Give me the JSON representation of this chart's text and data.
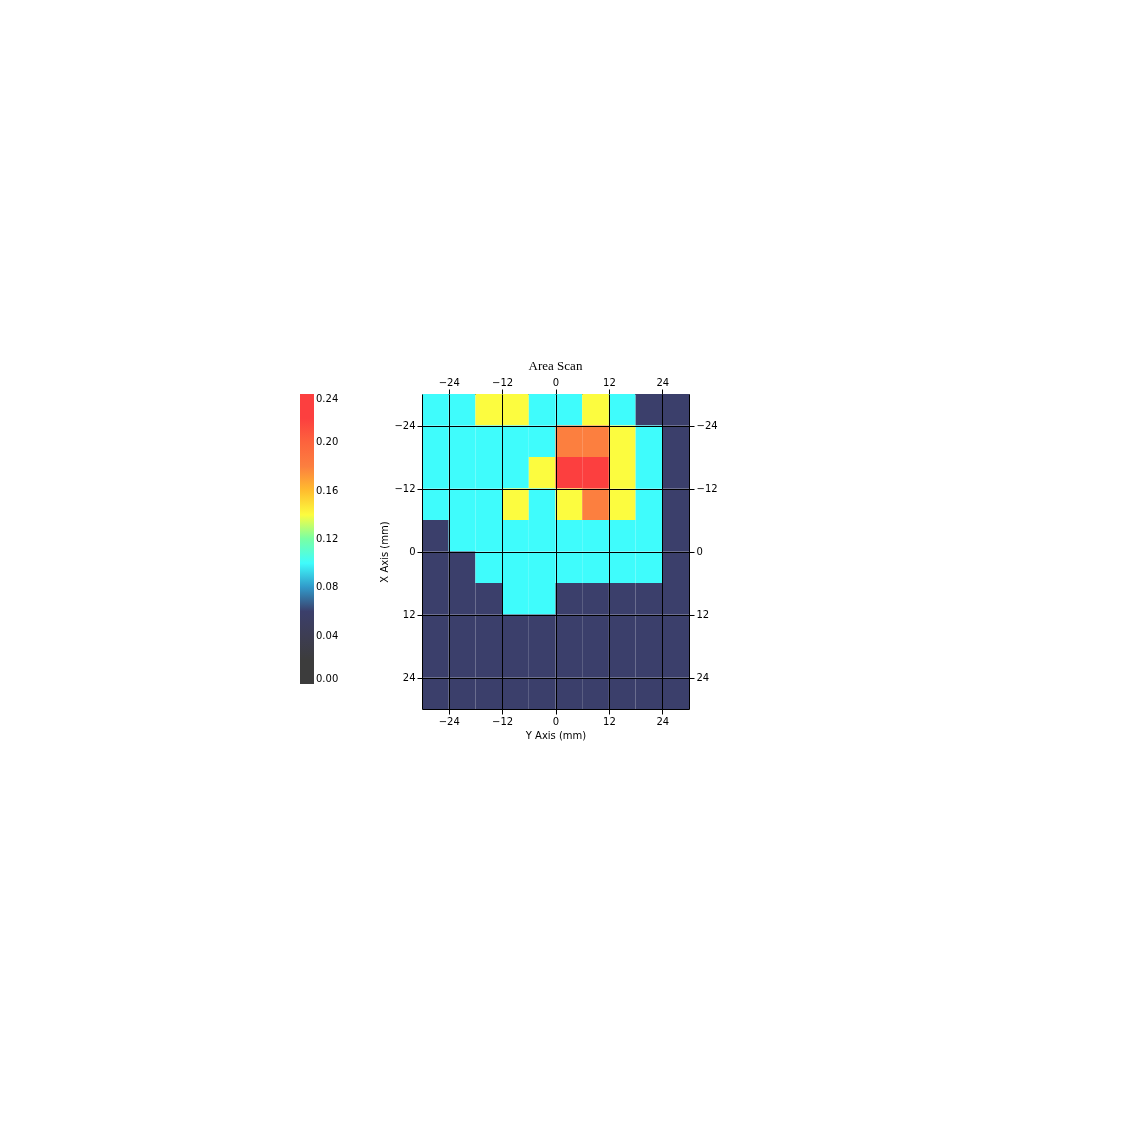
{
  "chart_data": {
    "type": "heatmap",
    "title": "Area Scan",
    "xlabel": "Y Axis (mm)",
    "ylabel": "X Axis (mm)",
    "x": [
      -27,
      -21,
      -15,
      -9,
      -3,
      3,
      9,
      15,
      21,
      27
    ],
    "y": [
      -27,
      -21,
      -15,
      -9,
      -3,
      3,
      9,
      15,
      21,
      27
    ],
    "xlim": [
      -30,
      30
    ],
    "xticks": [
      -24,
      -12,
      0,
      12,
      24
    ],
    "x2lim": [
      -30,
      30
    ],
    "x2ticks": [
      -24,
      -12,
      0,
      12,
      24
    ],
    "ylim": [
      30,
      -30
    ],
    "yticks": [
      -24,
      -12,
      0,
      12,
      24
    ],
    "y2lim": [
      30,
      -30
    ],
    "y2ticks": [
      -24,
      -12,
      0,
      12,
      24
    ],
    "grid": true,
    "clim": [
      0,
      0.24
    ],
    "cticks": [
      {
        "value": 0,
        "label": "0.00"
      },
      0.04,
      0.08,
      0.12,
      0.16,
      {
        "value": 0.2,
        "label": "0.20"
      },
      0.24
    ],
    "colors": [
      "#3c3c3c",
      "#3b3f6b",
      "#3ffcfc",
      "#fcfc3f",
      "#fc7f3f",
      "#fc3f3f"
    ],
    "cells": [
      [
        0.1,
        0.1,
        0.14,
        0.14,
        0.1,
        0.1,
        0.14,
        0.1,
        0.06,
        0.06
      ],
      [
        0.1,
        0.1,
        0.1,
        0.1,
        0.1,
        0.18,
        0.18,
        0.14,
        0.1,
        0.06
      ],
      [
        0.1,
        0.1,
        0.1,
        0.1,
        0.14,
        0.22,
        0.22,
        0.14,
        0.1,
        0.06
      ],
      [
        0.1,
        0.1,
        0.1,
        0.14,
        0.1,
        0.14,
        0.18,
        0.14,
        0.1,
        0.06
      ],
      [
        0.06,
        0.1,
        0.1,
        0.1,
        0.1,
        0.1,
        0.1,
        0.1,
        0.1,
        0.06
      ],
      [
        0.06,
        0.06,
        0.1,
        0.1,
        0.1,
        0.1,
        0.1,
        0.1,
        0.1,
        0.06
      ],
      [
        0.06,
        0.06,
        0.06,
        0.1,
        0.1,
        0.06,
        0.06,
        0.06,
        0.06,
        0.06
      ],
      [
        0.06,
        0.06,
        0.06,
        0.06,
        0.06,
        0.06,
        0.06,
        0.06,
        0.06,
        0.06
      ],
      [
        0.06,
        0.06,
        0.06,
        0.06,
        0.06,
        0.06,
        0.06,
        0.06,
        0.06,
        0.06
      ],
      [
        0.06,
        0.06,
        0.06,
        0.06,
        0.06,
        0.06,
        0.06,
        0.06,
        0.06,
        0.06
      ]
    ]
  }
}
